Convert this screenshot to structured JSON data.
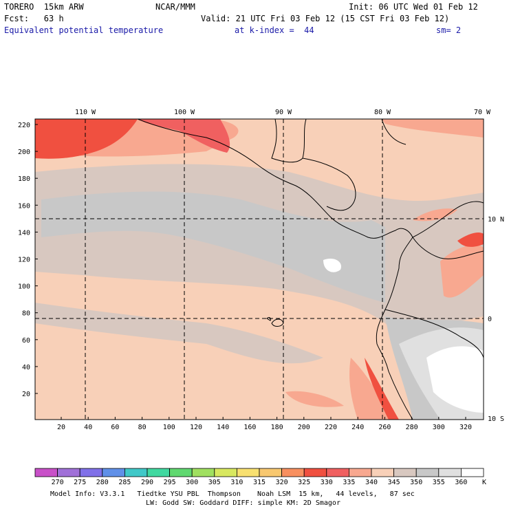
{
  "header": {
    "model": "TORERO  15km ARW",
    "org": "NCAR/MMM",
    "init": "Init: 06 UTC Wed 01 Feb 12",
    "fcst": "Fcst:   63 h",
    "valid": "Valid: 21 UTC Fri 03 Feb 12 (15 CST Fri 03 Feb 12)",
    "field": "Equivalent potential temperature",
    "level": "at k-index =  44",
    "smooth": "sm= 2"
  },
  "map": {
    "top_lon_labels": [
      "110 W",
      "100 W",
      "90 W",
      "80 W",
      "70 W"
    ],
    "right_lat_labels": [
      "10 N",
      "0",
      "10 S"
    ],
    "y_ticks": [
      "220",
      "200",
      "180",
      "160",
      "140",
      "120",
      "100",
      "80",
      "60",
      "40",
      "20"
    ],
    "x_ticks": [
      "20",
      "40",
      "60",
      "80",
      "100",
      "120",
      "140",
      "160",
      "180",
      "200",
      "220",
      "240",
      "260",
      "280",
      "300",
      "320"
    ]
  },
  "colorbar": {
    "labels": [
      "270",
      "275",
      "280",
      "285",
      "290",
      "295",
      "300",
      "305",
      "310",
      "315",
      "320",
      "325",
      "330",
      "335",
      "340",
      "345",
      "350",
      "355",
      "360"
    ],
    "unit": "K",
    "colors": [
      "#c850c8",
      "#a070d8",
      "#8070e8",
      "#6090e8",
      "#40c8c8",
      "#40d8a0",
      "#60d870",
      "#a0e060",
      "#d8e860",
      "#f8e070",
      "#f8c870",
      "#f89060",
      "#f05040",
      "#f06060",
      "#f8a890",
      "#f8d0b8",
      "#d8c8c0",
      "#c8c8c8",
      "#e0e0e0",
      "#ffffff"
    ]
  },
  "footer": {
    "line1": "Model Info: V3.3.1   Tiedtke YSU PBL  Thompson    Noah LSM  15 km,   44 levels,   87 sec",
    "line2": "LW: Godd SW: Goddard DIFF: simple KM: 2D Smagor"
  }
}
